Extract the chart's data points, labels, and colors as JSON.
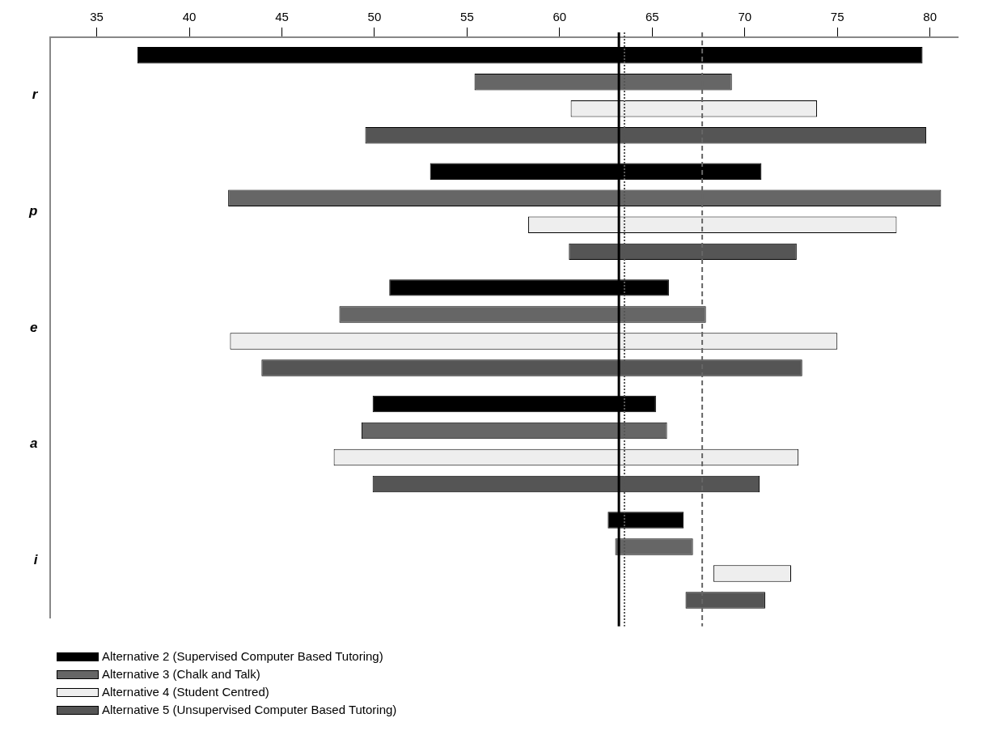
{
  "chart_data": {
    "type": "bar",
    "orientation": "horizontal",
    "categories": [
      "r",
      "p",
      "e",
      "a",
      "i"
    ],
    "xlim": [
      32.5,
      81.5
    ],
    "xticks": [
      35,
      40,
      45,
      50,
      55,
      60,
      65,
      70,
      75,
      80
    ],
    "series": [
      {
        "name": "Alternative 2 (Supervised Computer Based Tutoring)",
        "color": "#000000",
        "base": [
          37.2,
          53.0,
          50.8,
          49.9,
          62.6
        ],
        "values": [
          42.4,
          17.9,
          15.1,
          15.3,
          4.1
        ]
      },
      {
        "name": "Alternative 3 (Chalk and Talk)",
        "color": "#666666",
        "base": [
          55.4,
          42.1,
          48.1,
          49.3,
          63.0
        ],
        "values": [
          13.9,
          38.5,
          19.8,
          16.5,
          4.2
        ]
      },
      {
        "name": "Alternative 4 (Student Centred)",
        "color": "#eeeeee",
        "base": [
          60.6,
          58.3,
          42.2,
          47.8,
          68.3
        ],
        "values": [
          13.3,
          19.9,
          32.8,
          25.1,
          4.2
        ]
      },
      {
        "name": "Alternative 5 (Unsupervised Computer Based Tutoring)",
        "color": "#555555",
        "base": [
          49.5,
          60.5,
          43.9,
          49.9,
          66.8
        ],
        "values": [
          30.3,
          12.3,
          29.2,
          20.9,
          4.3
        ]
      }
    ],
    "ref_lines": [
      {
        "axis": "x",
        "value": 63.2,
        "color": "#000000",
        "line_style": "solid"
      },
      {
        "axis": "x",
        "value": 63.5,
        "color": "#555555",
        "line_style": "dotted"
      },
      {
        "axis": "x",
        "value": 67.7,
        "color": "#666666",
        "line_style": "dashed"
      }
    ],
    "grid": false,
    "legend": "bottom left"
  }
}
